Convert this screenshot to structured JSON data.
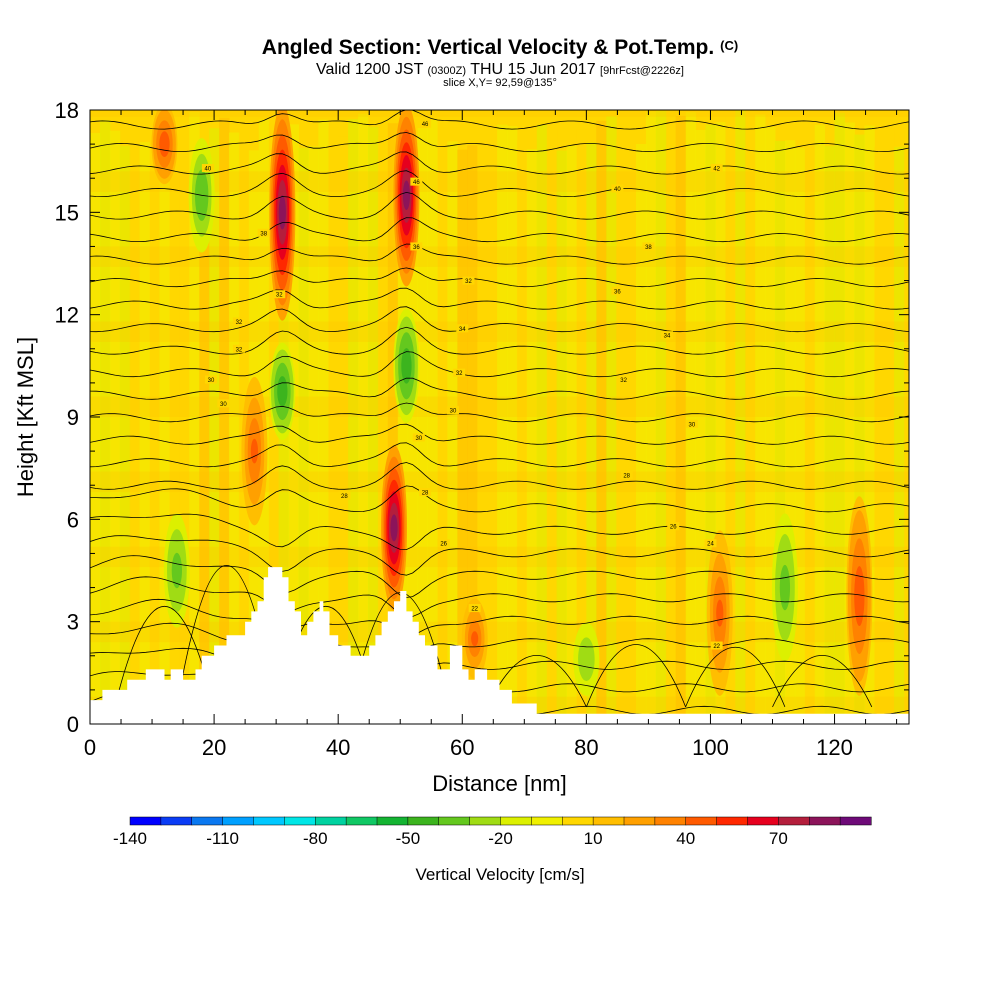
{
  "title": {
    "main": "Angled Section: Vertical Velocity & Pot.Temp.",
    "unit": "(C)",
    "valid_prefix": "Valid 1200 JST",
    "valid_utc": "(0300Z)",
    "valid_date": "THU 15 Jun 2017",
    "forecast": "[9hrFcst@2226z]",
    "slice": "slice X,Y= 92,59@135°"
  },
  "chart_data": {
    "type": "heatmap",
    "xlabel": "Distance [nm]",
    "ylabel": "Height [Kft MSL]",
    "xlim": [
      0,
      132
    ],
    "ylim": [
      0,
      18
    ],
    "x_ticks": [
      0,
      20,
      40,
      60,
      80,
      100,
      120
    ],
    "y_ticks": [
      0,
      3,
      6,
      9,
      12,
      15,
      18
    ],
    "grid": false,
    "colorbar": {
      "label": "Vertical Velocity [cm/s]",
      "tick_labels": [
        "-140",
        "-110",
        "-80",
        "-50",
        "-20",
        "10",
        "40",
        "70"
      ],
      "tick_values": [
        -140,
        -110,
        -80,
        -50,
        -20,
        10,
        40,
        70
      ],
      "levels": [
        -140,
        -130,
        -120,
        -110,
        -100,
        -90,
        -80,
        -70,
        -60,
        -50,
        -40,
        -30,
        -20,
        -10,
        0,
        10,
        20,
        30,
        40,
        50,
        60,
        70,
        80,
        90
      ],
      "colors": [
        "#0000ff",
        "#0a3cf5",
        "#0a78f0",
        "#00a0ff",
        "#00c8ff",
        "#00e6e6",
        "#00d2a0",
        "#10c864",
        "#14b432",
        "#3cb41e",
        "#64c81e",
        "#a0dc14",
        "#dcf000",
        "#f0f000",
        "#ffd700",
        "#ffbe00",
        "#ffa000",
        "#ff8200",
        "#ff5a00",
        "#ff2800",
        "#e6001e",
        "#b41e3c",
        "#8c145a",
        "#6e0a78"
      ]
    },
    "background_range": [
      -20,
      10
    ],
    "updrafts": [
      {
        "x": 12,
        "y_range": [
          16,
          18
        ],
        "max_value": 45
      },
      {
        "x": 31,
        "y_range": [
          12,
          18
        ],
        "max_value": 80
      },
      {
        "x": 51,
        "y_range": [
          13,
          18
        ],
        "max_value": 85
      },
      {
        "x": 49,
        "y_range": [
          3.5,
          8
        ],
        "max_value": 85
      },
      {
        "x": 26.5,
        "y_range": [
          6,
          10
        ],
        "max_value": 40
      },
      {
        "x": 62,
        "y_range": [
          1.5,
          3.5
        ],
        "max_value": 40
      },
      {
        "x": 101.5,
        "y_range": [
          1,
          5.5
        ],
        "max_value": 40
      },
      {
        "x": 124,
        "y_range": [
          1,
          6.5
        ],
        "max_value": 45
      }
    ],
    "downdrafts": [
      {
        "x": 18,
        "y_range": [
          14,
          17
        ],
        "min_value": -40
      },
      {
        "x": 31,
        "y_range": [
          8.5,
          11
        ],
        "min_value": -50
      },
      {
        "x": 51,
        "y_range": [
          9,
          12
        ],
        "min_value": -50
      },
      {
        "x": 14,
        "y_range": [
          3,
          6
        ],
        "min_value": -35
      },
      {
        "x": 112,
        "y_range": [
          2,
          6
        ],
        "min_value": -35
      },
      {
        "x": 80,
        "y_range": [
          1,
          2.8
        ],
        "min_value": -30
      }
    ],
    "isentrope_labels": [
      {
        "x": 54,
        "y": 17.6,
        "text": "46"
      },
      {
        "x": 101,
        "y": 16.3,
        "text": "42"
      },
      {
        "x": 19,
        "y": 16.3,
        "text": "40"
      },
      {
        "x": 52.6,
        "y": 15.9,
        "text": "46"
      },
      {
        "x": 85,
        "y": 15.7,
        "text": "40"
      },
      {
        "x": 90,
        "y": 14.0,
        "text": "38"
      },
      {
        "x": 28,
        "y": 14.4,
        "text": "38"
      },
      {
        "x": 52.6,
        "y": 14.0,
        "text": "36"
      },
      {
        "x": 61,
        "y": 13.0,
        "text": "32"
      },
      {
        "x": 85,
        "y": 12.7,
        "text": "36"
      },
      {
        "x": 30.5,
        "y": 12.6,
        "text": "32"
      },
      {
        "x": 60,
        "y": 11.6,
        "text": "34"
      },
      {
        "x": 93,
        "y": 11.4,
        "text": "34"
      },
      {
        "x": 24,
        "y": 11.8,
        "text": "32"
      },
      {
        "x": 24,
        "y": 11.0,
        "text": "32"
      },
      {
        "x": 59.5,
        "y": 10.3,
        "text": "32"
      },
      {
        "x": 86,
        "y": 10.1,
        "text": "32"
      },
      {
        "x": 19.5,
        "y": 10.1,
        "text": "30"
      },
      {
        "x": 21.5,
        "y": 9.4,
        "text": "30"
      },
      {
        "x": 58.5,
        "y": 9.2,
        "text": "30"
      },
      {
        "x": 97,
        "y": 8.8,
        "text": "30"
      },
      {
        "x": 53,
        "y": 8.4,
        "text": "30"
      },
      {
        "x": 86.5,
        "y": 7.3,
        "text": "28"
      },
      {
        "x": 41,
        "y": 6.7,
        "text": "28"
      },
      {
        "x": 54,
        "y": 6.8,
        "text": "28"
      },
      {
        "x": 94,
        "y": 5.8,
        "text": "26"
      },
      {
        "x": 57,
        "y": 5.3,
        "text": "26"
      },
      {
        "x": 100,
        "y": 5.3,
        "text": "24"
      },
      {
        "x": 62,
        "y": 3.4,
        "text": "22"
      },
      {
        "x": 101,
        "y": 2.3,
        "text": "22"
      }
    ]
  }
}
